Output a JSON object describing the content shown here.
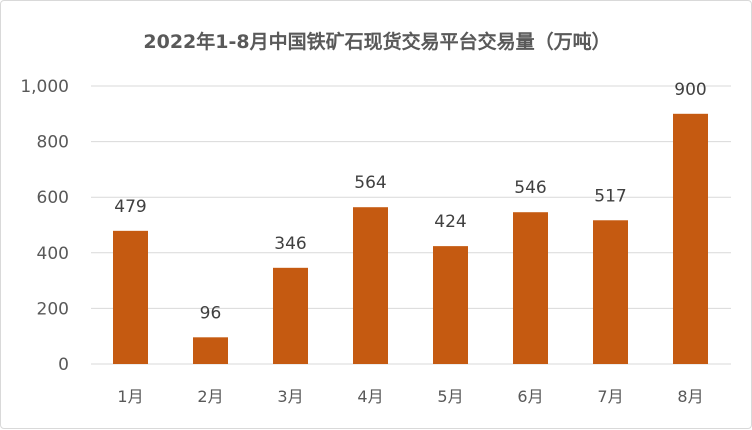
{
  "chart_data": {
    "type": "bar",
    "title": "2022年1-8月中国铁矿石现货交易平台交易量（万吨）",
    "categories": [
      "1月",
      "2月",
      "3月",
      "4月",
      "5月",
      "6月",
      "7月",
      "8月"
    ],
    "values": [
      479,
      96,
      346,
      564,
      424,
      546,
      517,
      900
    ],
    "ylim": [
      0,
      1000
    ],
    "yticks": [
      0,
      200,
      400,
      600,
      800,
      1000
    ],
    "ytick_labels": [
      "0",
      "200",
      "400",
      "600",
      "800",
      "1,000"
    ],
    "grid": true,
    "legend": "none",
    "bar_color": "#C55A11",
    "data_labels": true
  }
}
